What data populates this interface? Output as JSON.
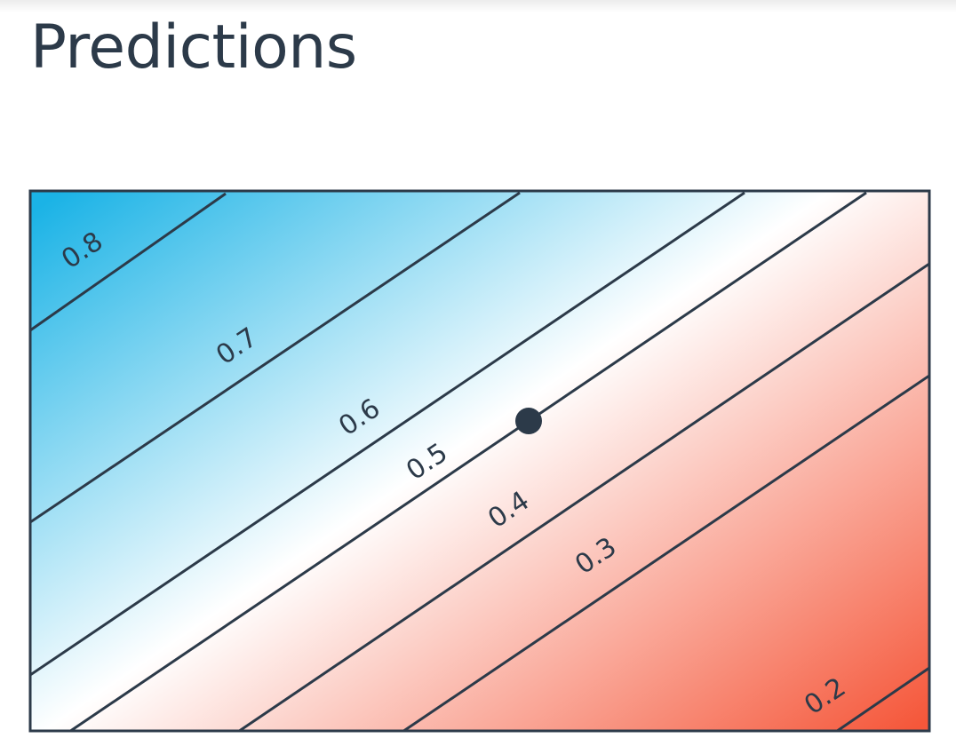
{
  "title": "Predictions",
  "colors": {
    "text": "#2c3a49",
    "high": "#1bb3e6",
    "mid": "#ffffff",
    "low": "#f5573a"
  },
  "contours": [
    {
      "value": "0.8"
    },
    {
      "value": "0.7"
    },
    {
      "value": "0.6"
    },
    {
      "value": "0.5"
    },
    {
      "value": "0.4"
    },
    {
      "value": "0.3"
    },
    {
      "value": "0.2"
    }
  ]
}
